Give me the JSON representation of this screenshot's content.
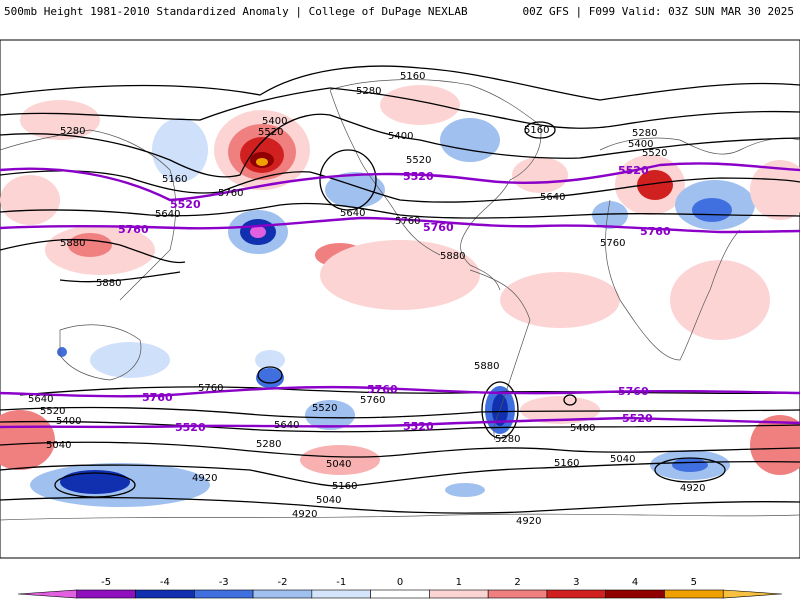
{
  "header": {
    "title": "500mb Height 1981-2010 Standardized Anomaly | College of DuPage NEXLAB",
    "run_info": "00Z GFS | F099 Valid: 03Z SUN MAR 30 2025"
  },
  "contour_labels": {
    "black": [
      "5160",
      "5280",
      "5400",
      "5520",
      "5640",
      "5760",
      "5880",
      "5160",
      "5280",
      "5400",
      "5520",
      "5640",
      "5760",
      "5880",
      "5160",
      "5280",
      "5400",
      "5520",
      "5640",
      "5760",
      "5040",
      "4920",
      "5640",
      "5520",
      "5400",
      "5040",
      "4920",
      "5280",
      "5160",
      "5040",
      "4920",
      "5760",
      "5640",
      "5520",
      "5400",
      "5280",
      "5160",
      "5040",
      "4920",
      "5760",
      "5880",
      "5880"
    ],
    "purple": [
      "5520",
      "5760",
      "5520",
      "5760",
      "5520",
      "5760",
      "5760",
      "5520",
      "5760",
      "5520",
      "5760",
      "5520"
    ]
  },
  "colorbar": {
    "ticks": [
      "-5",
      "-4",
      "-3",
      "-2",
      "-1",
      "0",
      "1",
      "2",
      "3",
      "4",
      "5"
    ],
    "colors": [
      "#e060e0",
      "#9010c0",
      "#1030b0",
      "#4070e0",
      "#a0c0f0",
      "#d4e4fa",
      "#ffffff",
      "#fcd4d4",
      "#f08080",
      "#d02020",
      "#900000",
      "#f0a000",
      "#f8c040"
    ]
  }
}
